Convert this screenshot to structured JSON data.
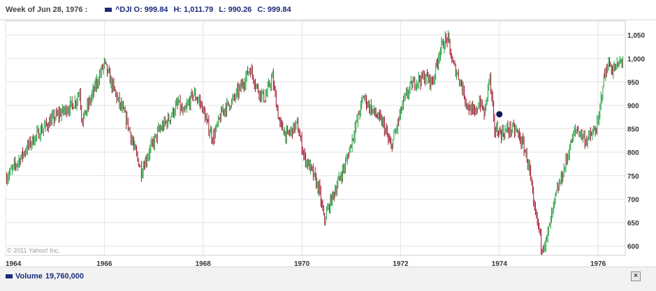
{
  "header": {
    "week_label": "Week of Jun 28, 1976 :",
    "symbol": "^DJI",
    "open_label": "O:",
    "open_value": "999.84",
    "high_label": "H:",
    "high_value": "1,011.79",
    "low_label": "L:",
    "low_value": "990.26",
    "close_label": "C:",
    "close_value": "999.84",
    "series_color": "#1a2a7a"
  },
  "footer": {
    "volume_label": "Volume",
    "volume_value": "19,760,000",
    "close_button": "×",
    "close_icon": "close-icon"
  },
  "chart_data": {
    "type": "candlestick",
    "series_name": "^DJI",
    "copyright": "© 2011 Yahoo! Inc.",
    "x_ticks": [
      "1964",
      "1966",
      "1968",
      "1970",
      "1972",
      "1974",
      "1976"
    ],
    "y_ticks": [
      "600",
      "650",
      "700",
      "750",
      "800",
      "850",
      "900",
      "950",
      "1,000",
      "1,050"
    ],
    "ylim": [
      580,
      1080
    ],
    "xlim": [
      1964.0,
      1976.55
    ],
    "grid": true,
    "colors": {
      "up": "#1e9e3e",
      "down": "#a0102a",
      "marker": "#0a1a5a"
    },
    "marker": {
      "x": 1974.0,
      "y": 881
    },
    "path_points": [
      [
        1964.0,
        745
      ],
      [
        1964.1,
        758
      ],
      [
        1964.25,
        780
      ],
      [
        1964.5,
        820
      ],
      [
        1964.75,
        850
      ],
      [
        1965.0,
        875
      ],
      [
        1965.2,
        890
      ],
      [
        1965.4,
        905
      ],
      [
        1965.5,
        930
      ],
      [
        1965.55,
        865
      ],
      [
        1965.6,
        880
      ],
      [
        1965.8,
        935
      ],
      [
        1966.0,
        990
      ],
      [
        1966.15,
        945
      ],
      [
        1966.3,
        905
      ],
      [
        1966.45,
        870
      ],
      [
        1966.6,
        810
      ],
      [
        1966.75,
        760
      ],
      [
        1966.9,
        800
      ],
      [
        1967.1,
        845
      ],
      [
        1967.3,
        870
      ],
      [
        1967.5,
        905
      ],
      [
        1967.6,
        880
      ],
      [
        1967.8,
        925
      ],
      [
        1967.95,
        905
      ],
      [
        1968.1,
        855
      ],
      [
        1968.2,
        830
      ],
      [
        1968.4,
        890
      ],
      [
        1968.6,
        910
      ],
      [
        1968.8,
        945
      ],
      [
        1968.95,
        980
      ],
      [
        1969.1,
        935
      ],
      [
        1969.25,
        915
      ],
      [
        1969.4,
        960
      ],
      [
        1969.55,
        860
      ],
      [
        1969.7,
        835
      ],
      [
        1969.9,
        860
      ],
      [
        1970.05,
        790
      ],
      [
        1970.2,
        760
      ],
      [
        1970.35,
        720
      ],
      [
        1970.45,
        655
      ],
      [
        1970.6,
        700
      ],
      [
        1970.75,
        740
      ],
      [
        1970.9,
        780
      ],
      [
        1971.05,
        840
      ],
      [
        1971.25,
        920
      ],
      [
        1971.35,
        900
      ],
      [
        1971.5,
        880
      ],
      [
        1971.65,
        860
      ],
      [
        1971.8,
        810
      ],
      [
        1971.9,
        845
      ],
      [
        1972.05,
        905
      ],
      [
        1972.2,
        940
      ],
      [
        1972.35,
        955
      ],
      [
        1972.5,
        960
      ],
      [
        1972.65,
        950
      ],
      [
        1972.8,
        1020
      ],
      [
        1972.95,
        1045
      ],
      [
        1973.05,
        990
      ],
      [
        1973.2,
        955
      ],
      [
        1973.35,
        900
      ],
      [
        1973.5,
        880
      ],
      [
        1973.6,
        910
      ],
      [
        1973.7,
        880
      ],
      [
        1973.8,
        965
      ],
      [
        1973.9,
        850
      ],
      [
        1974.05,
        840
      ],
      [
        1974.2,
        850
      ],
      [
        1974.35,
        845
      ],
      [
        1974.5,
        810
      ],
      [
        1974.6,
        770
      ],
      [
        1974.7,
        680
      ],
      [
        1974.8,
        640
      ],
      [
        1974.85,
        600
      ],
      [
        1974.95,
        610
      ],
      [
        1975.05,
        660
      ],
      [
        1975.15,
        710
      ],
      [
        1975.3,
        760
      ],
      [
        1975.45,
        820
      ],
      [
        1975.55,
        850
      ],
      [
        1975.65,
        840
      ],
      [
        1975.75,
        825
      ],
      [
        1975.9,
        840
      ],
      [
        1976.0,
        860
      ],
      [
        1976.1,
        950
      ],
      [
        1976.2,
        990
      ],
      [
        1976.3,
        975
      ],
      [
        1976.4,
        985
      ],
      [
        1976.5,
        999.84
      ]
    ]
  }
}
